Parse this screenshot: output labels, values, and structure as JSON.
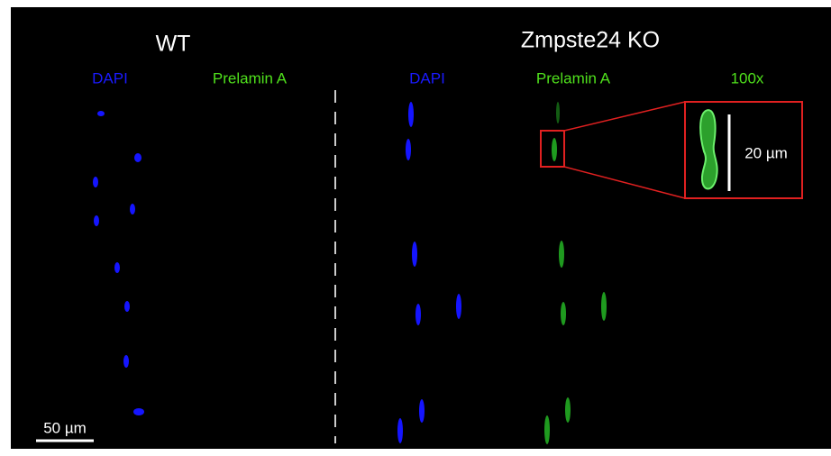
{
  "panels": [
    {
      "title": "WT",
      "channels": [
        "DAPI",
        "Prelamin A"
      ]
    },
    {
      "title": "Zmpste24 KO",
      "channels": [
        "DAPI",
        "Prelamin A",
        "100x"
      ]
    }
  ],
  "scale_bars": {
    "inset": "20 µm",
    "main": "50 µm"
  }
}
